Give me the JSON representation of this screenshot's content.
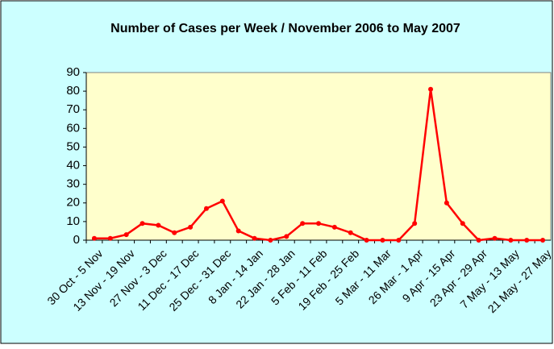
{
  "chart_data": {
    "type": "line",
    "title": "Number of Cases per Week / November 2006 to May 2007",
    "categories": [
      "30 Oct - 5 Nov",
      null,
      "13 Nov - 19 Nov",
      null,
      "27 Nov - 3 Dec",
      null,
      "11 Dec - 17 Dec",
      null,
      "25 Dec - 31 Dec",
      null,
      "8 Jan - 14 Jan",
      null,
      "22 Jan - 28 Jan",
      null,
      "5 Feb - 11 Feb",
      null,
      "19 Feb - 25 Feb",
      null,
      "5 Mar - 11 Mar",
      null,
      "26 Mar - 1 Apr",
      null,
      "9 Apr - 15 Apr",
      null,
      "23 Apr - 29 Apr",
      null,
      "7 May - 13 May",
      null,
      "21 May - 27 May"
    ],
    "values": [
      1,
      1,
      3,
      9,
      8,
      4,
      7,
      17,
      21,
      5,
      1,
      0,
      2,
      9,
      9,
      7,
      4,
      0,
      0,
      0,
      9,
      81,
      20,
      9,
      0,
      1,
      0,
      0,
      0
    ],
    "color": "#ff0000",
    "ylim": [
      0,
      90
    ],
    "yticks": [
      0,
      10,
      20,
      30,
      40,
      50,
      60,
      70,
      80,
      90
    ],
    "grid": false
  }
}
